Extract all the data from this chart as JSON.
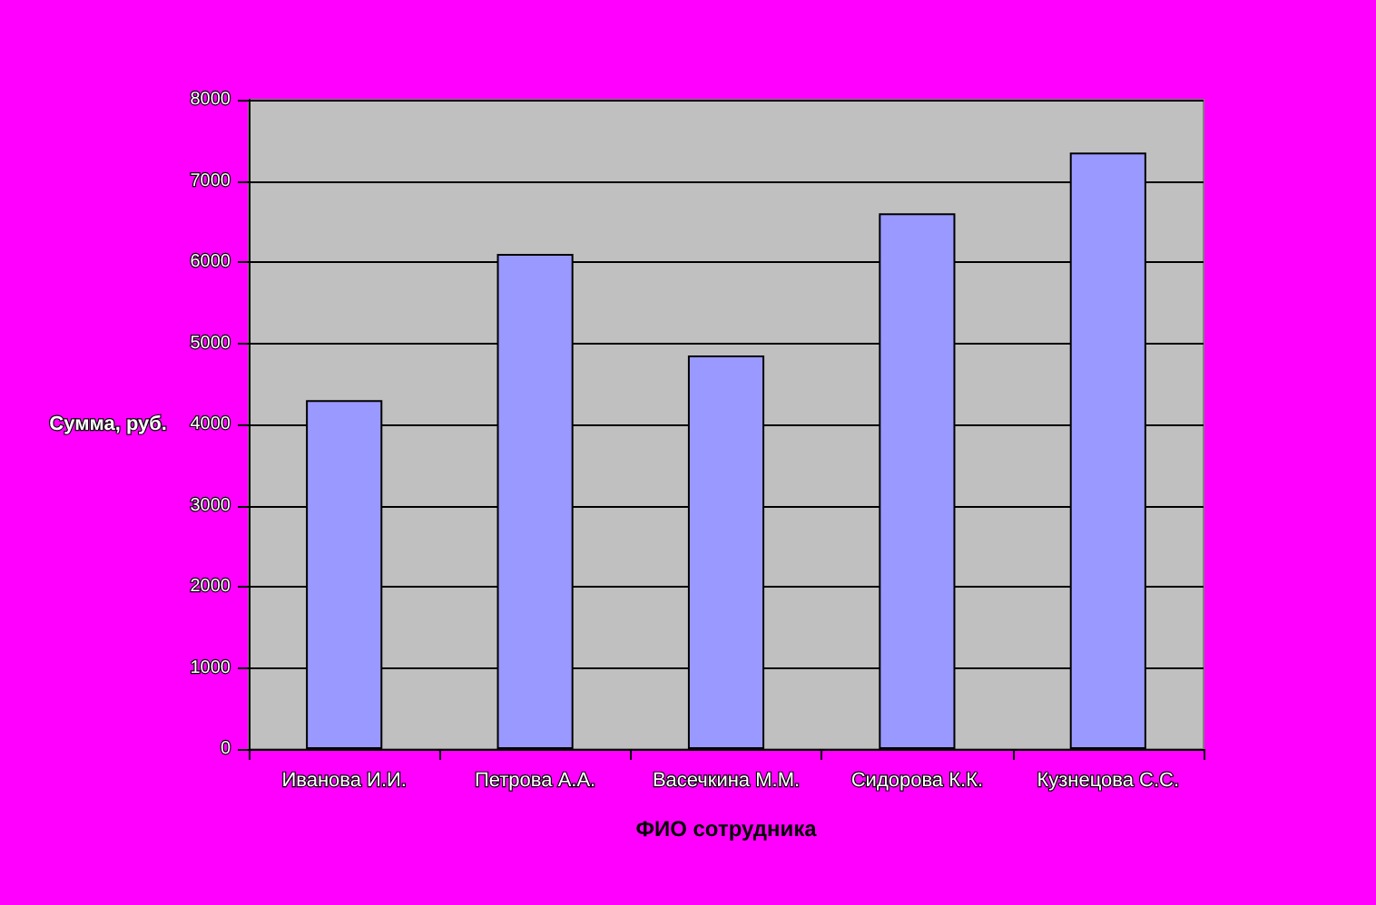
{
  "chart_data": {
    "type": "bar",
    "xlabel": "ФИО сотрудника",
    "ylabel": "Сумма, руб.",
    "categories": [
      "Иванова И.И.",
      "Петрова А.А.",
      "Васечкина М.М.",
      "Сидорова К.К.",
      "Кузнецова С.С."
    ],
    "values": [
      4300,
      6100,
      4850,
      6600,
      7350
    ],
    "color": "#9999ff",
    "ylim": [
      0,
      8000
    ],
    "yticks": [
      0,
      1000,
      2000,
      3000,
      4000,
      5000,
      6000,
      7000,
      8000
    ],
    "grid": "y"
  }
}
